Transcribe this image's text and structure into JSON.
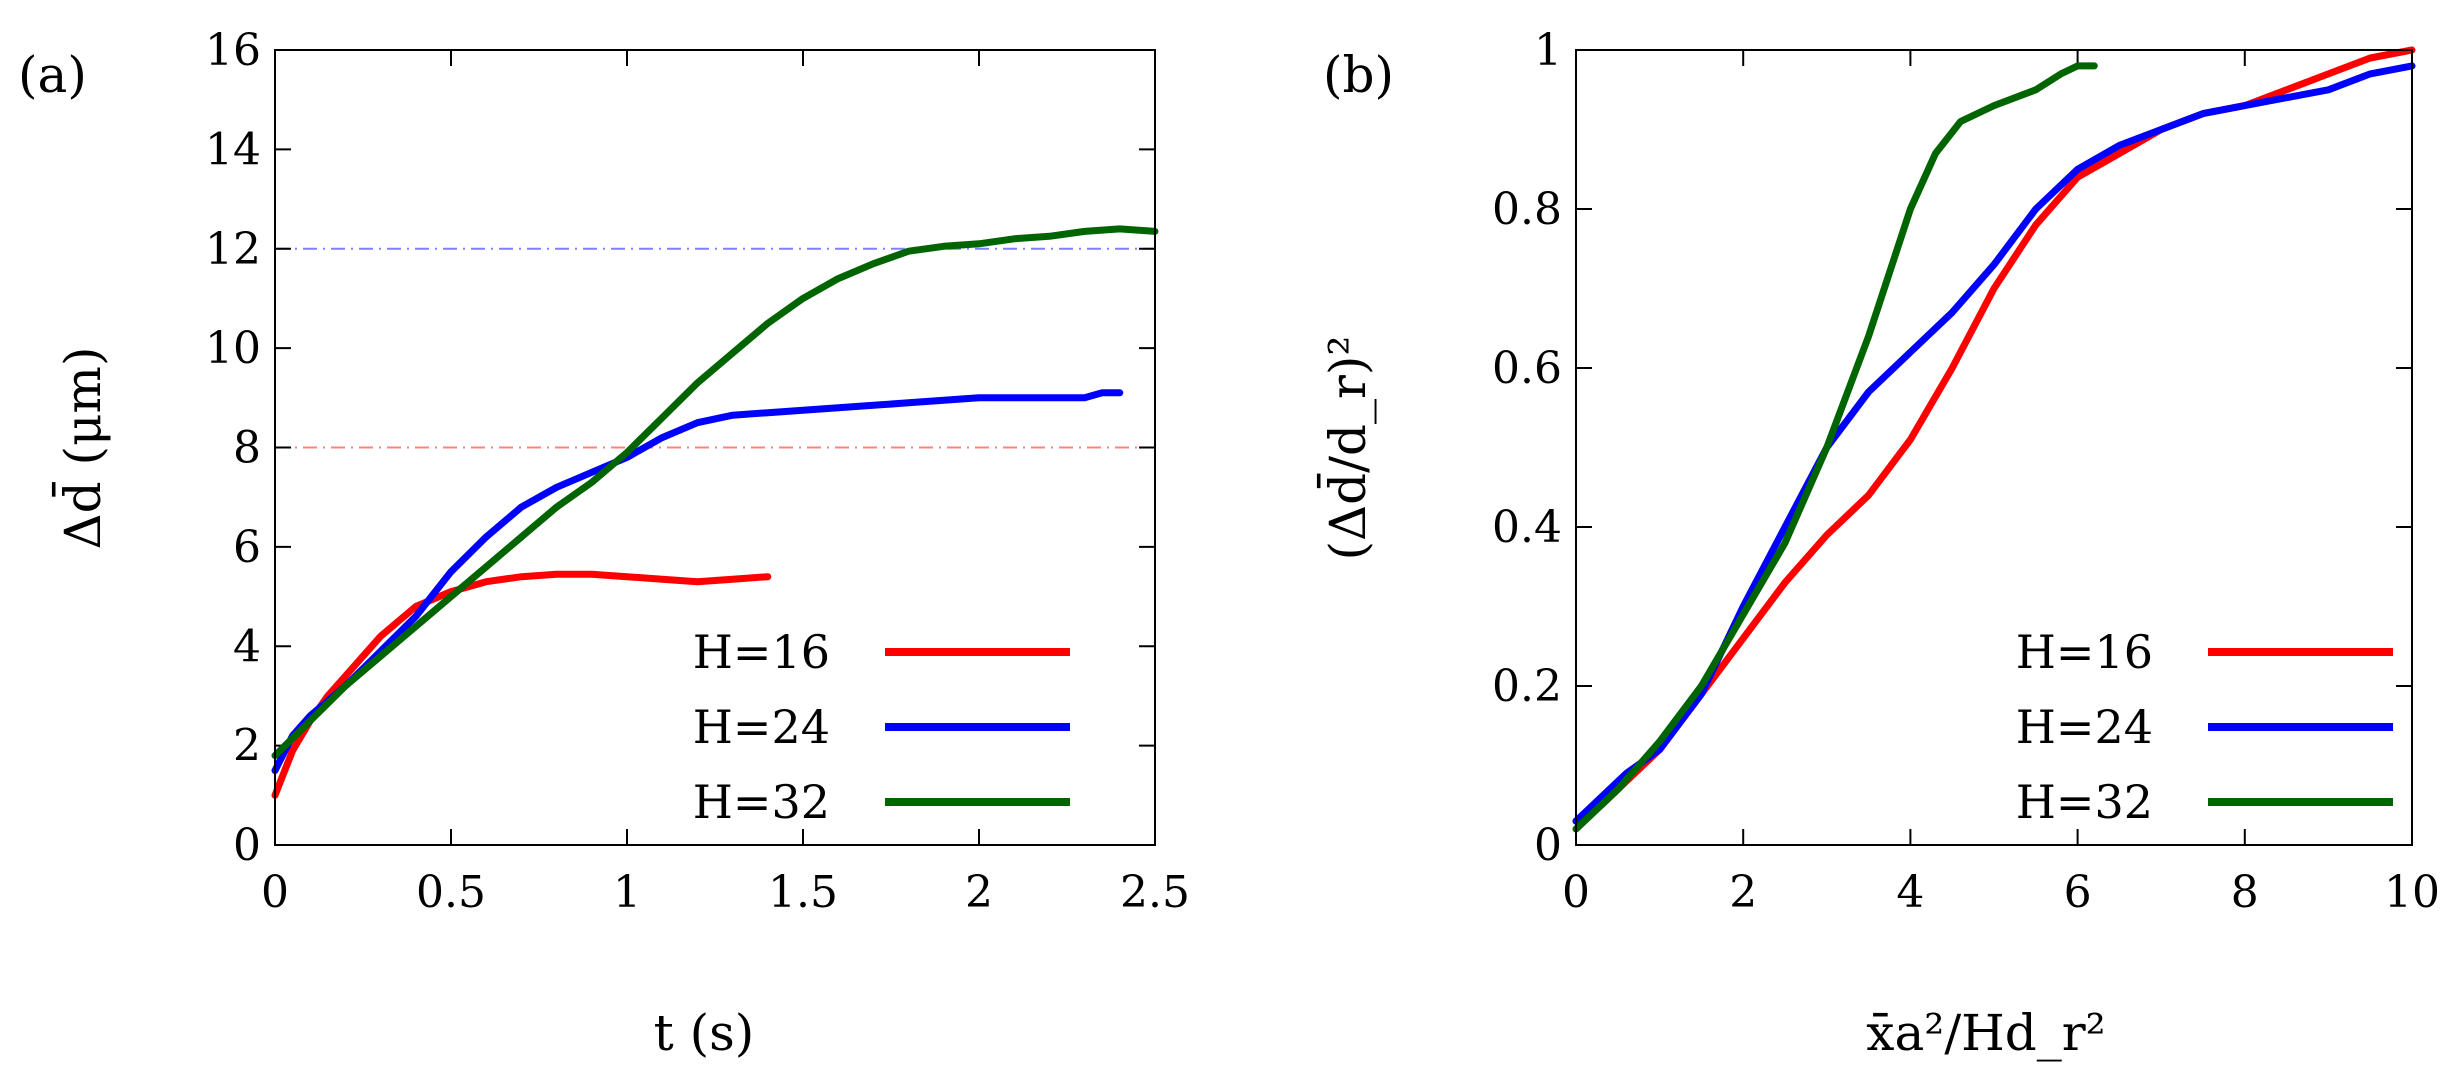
{
  "chart_data": [
    {
      "type": "line",
      "panel_label": "(a)",
      "xlabel": "t (s)",
      "ylabel": "Δd̄ (μm)",
      "xlim": [
        0,
        2.5
      ],
      "ylim": [
        0,
        16
      ],
      "xticks": [
        0,
        0.5,
        1,
        1.5,
        2,
        2.5
      ],
      "yticks": [
        0,
        2,
        4,
        6,
        8,
        10,
        12,
        14,
        16
      ],
      "grid": false,
      "legend_position": "bottom-right",
      "reference_lines": [
        {
          "y": 12,
          "color": "#8080ff",
          "style": "dash-dot"
        },
        {
          "y": 8,
          "color": "#ff8080",
          "style": "dash-dot"
        }
      ],
      "series": [
        {
          "name": "H=16",
          "color": "#ff0000",
          "x": [
            0,
            0.05,
            0.1,
            0.15,
            0.2,
            0.3,
            0.4,
            0.5,
            0.6,
            0.7,
            0.8,
            0.9,
            1.0,
            1.1,
            1.2,
            1.3,
            1.4
          ],
          "y": [
            1.0,
            1.9,
            2.5,
            3.0,
            3.4,
            4.2,
            4.8,
            5.1,
            5.3,
            5.4,
            5.45,
            5.45,
            5.4,
            5.35,
            5.3,
            5.35,
            5.4
          ]
        },
        {
          "name": "H=24",
          "color": "#0000ff",
          "x": [
            0,
            0.05,
            0.1,
            0.2,
            0.3,
            0.4,
            0.5,
            0.6,
            0.7,
            0.8,
            0.9,
            1.0,
            1.1,
            1.2,
            1.3,
            1.4,
            1.5,
            1.6,
            1.7,
            1.8,
            1.9,
            2.0,
            2.1,
            2.2,
            2.3,
            2.35,
            2.4
          ],
          "y": [
            1.5,
            2.2,
            2.6,
            3.2,
            3.9,
            4.6,
            5.5,
            6.2,
            6.8,
            7.2,
            7.5,
            7.8,
            8.2,
            8.5,
            8.65,
            8.7,
            8.75,
            8.8,
            8.85,
            8.9,
            8.95,
            9.0,
            9.0,
            9.0,
            9.0,
            9.1,
            9.1
          ]
        },
        {
          "name": "H=32",
          "color": "#006400",
          "x": [
            0,
            0.1,
            0.2,
            0.3,
            0.4,
            0.5,
            0.6,
            0.7,
            0.8,
            0.9,
            1.0,
            1.1,
            1.2,
            1.3,
            1.4,
            1.5,
            1.6,
            1.7,
            1.8,
            1.9,
            2.0,
            2.1,
            2.2,
            2.3,
            2.4,
            2.5
          ],
          "y": [
            1.8,
            2.5,
            3.2,
            3.8,
            4.4,
            5.0,
            5.6,
            6.2,
            6.8,
            7.3,
            7.9,
            8.6,
            9.3,
            9.9,
            10.5,
            11.0,
            11.4,
            11.7,
            11.95,
            12.05,
            12.1,
            12.2,
            12.25,
            12.35,
            12.4,
            12.35
          ]
        }
      ]
    },
    {
      "type": "line",
      "panel_label": "(b)",
      "xlabel": "x̄a²/Hd_r²",
      "ylabel": "(Δd̄/d_r)²",
      "xlim": [
        0,
        10
      ],
      "ylim": [
        0,
        1
      ],
      "xticks": [
        0,
        2,
        4,
        6,
        8,
        10
      ],
      "yticks": [
        0,
        0.2,
        0.4,
        0.6,
        0.8,
        1
      ],
      "grid": false,
      "legend_position": "bottom-right",
      "series": [
        {
          "name": "H=16",
          "color": "#ff0000",
          "x": [
            0,
            0.3,
            0.6,
            1.0,
            1.5,
            2.0,
            2.5,
            3.0,
            3.5,
            4.0,
            4.5,
            5.0,
            5.5,
            6.0,
            6.5,
            7.0,
            7.5,
            8.0,
            8.5,
            9.0,
            9.5,
            10.0
          ],
          "y": [
            0.03,
            0.05,
            0.08,
            0.12,
            0.19,
            0.26,
            0.33,
            0.39,
            0.44,
            0.51,
            0.6,
            0.7,
            0.78,
            0.84,
            0.87,
            0.9,
            0.92,
            0.93,
            0.95,
            0.97,
            0.99,
            1.0
          ]
        },
        {
          "name": "H=24",
          "color": "#0000ff",
          "x": [
            0,
            0.3,
            0.6,
            1.0,
            1.5,
            2.0,
            2.5,
            3.0,
            3.5,
            4.0,
            4.5,
            5.0,
            5.5,
            6.0,
            6.5,
            7.0,
            7.5,
            8.0,
            8.5,
            9.0,
            9.5,
            10.0
          ],
          "y": [
            0.03,
            0.06,
            0.09,
            0.12,
            0.19,
            0.3,
            0.4,
            0.5,
            0.57,
            0.62,
            0.67,
            0.73,
            0.8,
            0.85,
            0.88,
            0.9,
            0.92,
            0.93,
            0.94,
            0.95,
            0.97,
            0.98
          ]
        },
        {
          "name": "H=32",
          "color": "#006400",
          "x": [
            0,
            0.5,
            1.0,
            1.5,
            2.0,
            2.5,
            3.0,
            3.5,
            4.0,
            4.3,
            4.6,
            5.0,
            5.5,
            5.8,
            6.0,
            6.2
          ],
          "y": [
            0.02,
            0.07,
            0.13,
            0.2,
            0.29,
            0.38,
            0.5,
            0.64,
            0.8,
            0.87,
            0.91,
            0.93,
            0.95,
            0.97,
            0.98,
            0.98
          ]
        }
      ]
    }
  ]
}
